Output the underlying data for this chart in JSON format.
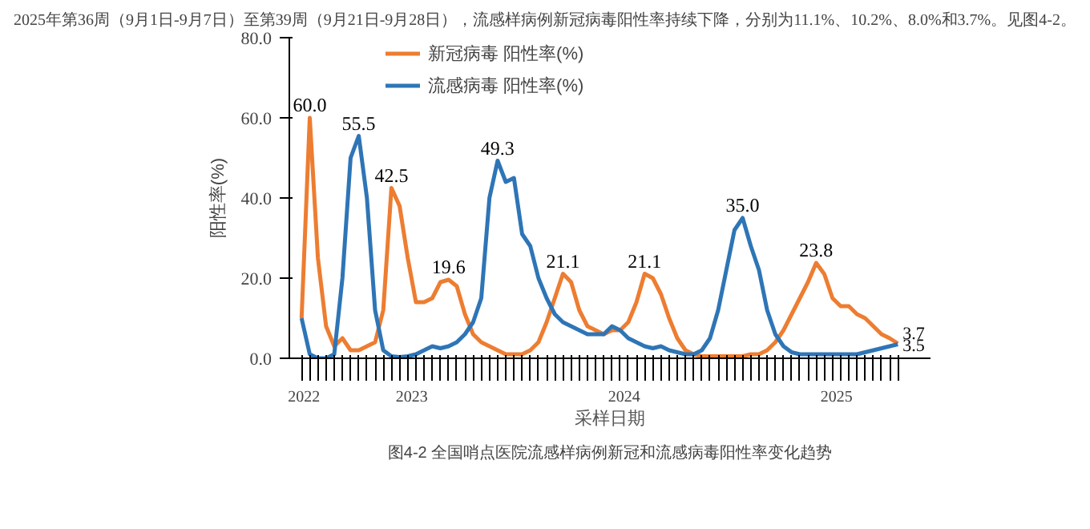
{
  "chart_data": {
    "type": "line",
    "title": "2025年第36周（9月1日-9月7日）至第39周（9月21日-9月28日），流感样病例新冠病毒阳性率持续下降，分别为11.1%、10.2%、8.0%和3.7%。见图4-2。",
    "xlabel": "采样日期",
    "ylabel": "阳性率(%)",
    "categories": [
      null,
      null,
      null,
      null,
      null,
      null,
      null,
      null,
      null,
      null,
      null,
      null,
      null,
      null,
      null,
      null,
      null,
      null,
      null,
      null,
      null,
      null,
      null,
      null,
      null,
      null,
      null,
      null,
      null,
      null,
      null,
      null,
      null,
      null,
      null,
      null,
      null,
      null,
      null,
      null,
      null,
      null,
      null,
      null,
      null,
      null,
      null,
      null,
      null,
      null,
      null,
      null,
      null,
      null,
      null,
      null,
      null,
      null,
      null,
      null,
      null,
      null,
      null,
      null,
      null,
      null,
      null,
      null,
      null,
      null,
      null,
      null,
      null,
      null
    ],
    "series": [
      {
        "name": "新冠病毒 阳性率(%)",
        "color": "#ed7d31",
        "values": [
          10,
          60,
          25,
          8,
          3,
          5,
          2,
          2,
          3,
          4,
          12,
          42.5,
          38,
          25,
          14,
          14,
          15,
          19,
          19.6,
          18,
          11,
          6,
          4,
          3,
          2,
          1,
          1,
          1,
          2,
          4,
          9,
          15,
          21.1,
          19,
          12,
          8,
          7,
          6,
          7,
          7,
          9,
          14,
          21.1,
          20,
          16,
          10,
          5,
          2,
          1,
          0.5,
          0.5,
          0.5,
          0.5,
          0.5,
          0.5,
          1,
          1,
          2,
          4,
          7,
          11,
          15,
          19,
          23.8,
          21,
          15,
          13,
          13,
          11,
          10,
          8,
          6,
          5,
          3.7
        ],
        "value_labels": [
          null,
          "60.0",
          null,
          null,
          null,
          null,
          null,
          null,
          null,
          null,
          null,
          "42.5",
          null,
          null,
          null,
          null,
          null,
          null,
          "19.6",
          null,
          null,
          null,
          null,
          null,
          null,
          null,
          null,
          null,
          null,
          null,
          null,
          null,
          "21.1",
          null,
          null,
          null,
          null,
          null,
          null,
          null,
          null,
          null,
          "21.1",
          null,
          null,
          null,
          null,
          null,
          null,
          null,
          null,
          null,
          null,
          null,
          null,
          null,
          null,
          null,
          null,
          null,
          null,
          null,
          null,
          "23.8",
          null,
          null,
          null,
          null,
          null,
          null,
          null,
          null,
          null,
          "3.7"
        ]
      },
      {
        "name": "流感病毒 阳性率(%)",
        "color": "#2e75b6",
        "values": [
          10,
          1,
          0,
          0,
          1,
          20,
          50,
          55.5,
          40,
          12,
          2,
          0.5,
          0.3,
          0.5,
          1,
          2,
          3,
          2.5,
          3,
          4,
          6,
          9,
          15,
          40,
          49.3,
          44,
          45,
          31,
          28,
          20,
          15,
          11,
          9,
          8,
          7,
          6,
          6,
          6,
          8,
          7,
          5,
          4,
          3,
          2.5,
          3,
          2,
          1.5,
          1,
          1,
          2,
          5,
          12,
          22,
          32,
          35.0,
          28,
          22,
          12,
          6,
          3,
          1.5,
          1,
          1,
          1,
          1,
          1,
          1,
          1,
          1,
          1.5,
          2,
          2.5,
          3,
          3.5
        ],
        "value_labels": [
          null,
          null,
          null,
          null,
          null,
          null,
          null,
          "55.5",
          null,
          null,
          null,
          null,
          null,
          null,
          null,
          null,
          null,
          null,
          null,
          null,
          null,
          null,
          null,
          null,
          "49.3",
          null,
          null,
          null,
          null,
          null,
          null,
          null,
          null,
          null,
          null,
          null,
          null,
          null,
          null,
          null,
          null,
          null,
          null,
          null,
          null,
          null,
          null,
          null,
          null,
          null,
          null,
          null,
          null,
          null,
          "35.0",
          null,
          null,
          null,
          null,
          null,
          null,
          null,
          null,
          null,
          null,
          null,
          null,
          null,
          null,
          null,
          null,
          null,
          null,
          "3.5"
        ]
      }
    ],
    "ylim": [
      0,
      80
    ],
    "yticks": [
      {
        "value": 0,
        "label": "0.0"
      },
      {
        "value": 20,
        "label": "20.0"
      },
      {
        "value": 40,
        "label": "40.0"
      },
      {
        "value": 60,
        "label": "60.0"
      },
      {
        "value": 80,
        "label": "80.0"
      }
    ],
    "grid": false,
    "legend": "top left",
    "marker": "none",
    "line_style": "solid",
    "annotations": [
      "2022",
      "2023",
      "2024",
      "2025",
      "图4-2 全国哨点医院流感样病例新冠和流感病毒阳性率变化趋势"
    ]
  }
}
